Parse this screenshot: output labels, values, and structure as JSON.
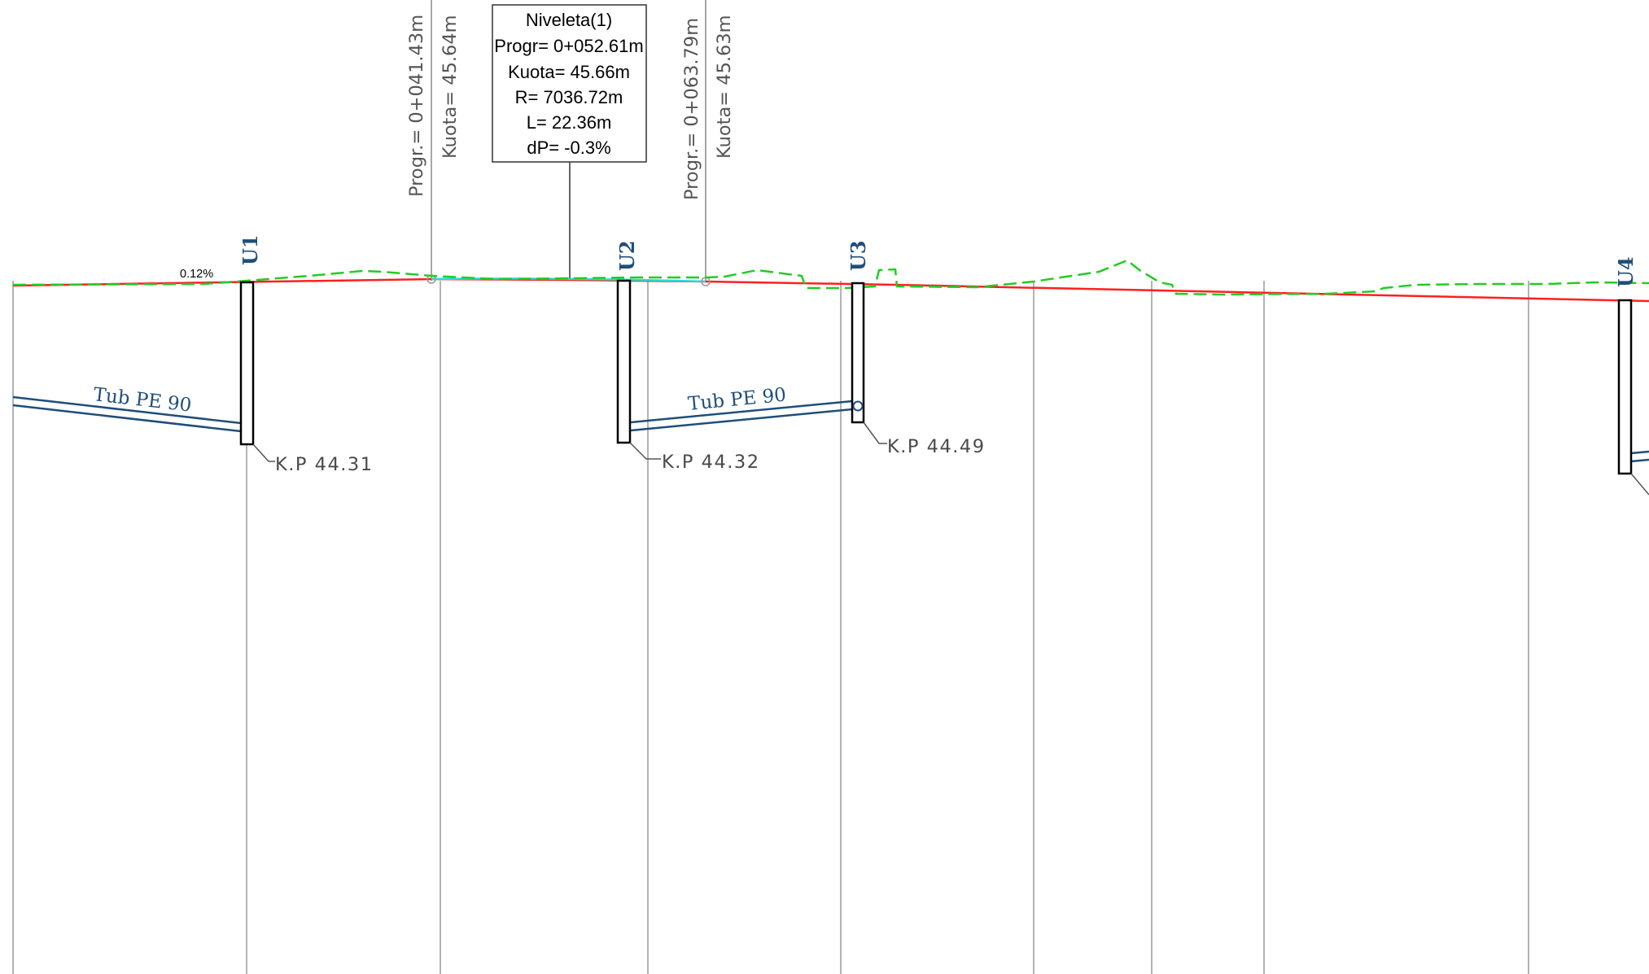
{
  "colors": {
    "design_line": "#ff2020",
    "terrain_line": "#22cc22",
    "pipe": "#1f4e79",
    "vertical_curve": "#22dddd",
    "grid": "#9a9a9a",
    "manhole": "#000000",
    "label_blue": "#1f4e79"
  },
  "grade_label": "0.12%",
  "vertical_curve_box": {
    "title": "Niveleta(1)",
    "lines": [
      "Progr= 0+052.61m",
      "Kuota= 45.66m",
      "R= 7036.72m",
      "L= 22.36m",
      "dP= -0.3%"
    ]
  },
  "station_labels": [
    {
      "progr": "Progr.=  0+041.43m",
      "kuota": "Kuota=  45.64m"
    },
    {
      "progr": "Progr.=  0+063.79m",
      "kuota": "Kuota=  45.63m"
    }
  ],
  "manholes": [
    {
      "name": "U1",
      "kp": "K.P  44.31"
    },
    {
      "name": "U2",
      "kp": "K.P  44.32"
    },
    {
      "name": "U3",
      "kp": "K.P  44.49"
    },
    {
      "name": "U4",
      "kp": ""
    }
  ],
  "pipes": [
    {
      "label": "Tub PE 90"
    },
    {
      "label": "Tub PE 90"
    }
  ]
}
